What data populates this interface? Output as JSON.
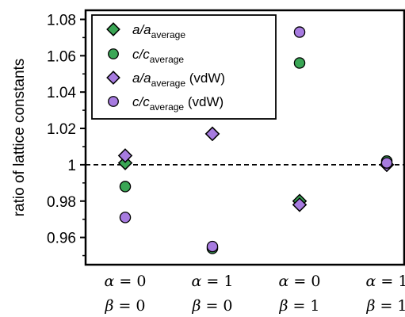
{
  "chart_data": {
    "type": "scatter",
    "xlabel": "",
    "ylabel": "ratio of lattice constants",
    "ylim": [
      0.945,
      1.085
    ],
    "yticks": [
      0.96,
      0.98,
      1,
      1.02,
      1.04,
      1.06,
      1.08
    ],
    "ytick_labels": [
      "0.96",
      "0.98",
      "1",
      "1.02",
      "1.04",
      "1.06",
      "1.08"
    ],
    "reference_line": {
      "y": 1,
      "style": "dashed"
    },
    "categories": [
      {
        "alpha": "α = 0",
        "beta": "β = 0"
      },
      {
        "alpha": "α = 1",
        "beta": "β = 0"
      },
      {
        "alpha": "α = 0",
        "beta": "β = 1"
      },
      {
        "alpha": "α = 1",
        "beta": "β = 1"
      }
    ],
    "legend_position": "top-left",
    "series": [
      {
        "name": "a/a_average",
        "label_main": "a/a",
        "label_sub": "average",
        "label_suffix": "",
        "marker": "diamond",
        "color": "#3aa655",
        "values": [
          1.001,
          1.017,
          0.98,
          1.0
        ]
      },
      {
        "name": "c/c_average",
        "label_main": "c/c",
        "label_sub": "average",
        "label_suffix": "",
        "marker": "circle",
        "color": "#3aa655",
        "values": [
          0.988,
          0.954,
          1.056,
          1.002
        ]
      },
      {
        "name": "a/a_average (vdW)",
        "label_main": "a/a",
        "label_sub": "average",
        "label_suffix": " (vdW)",
        "marker": "diamond",
        "color": "#a77be0",
        "values": [
          1.005,
          1.017,
          0.978,
          1.0
        ]
      },
      {
        "name": "c/c_average (vdW)",
        "label_main": "c/c",
        "label_sub": "average",
        "label_suffix": " (vdW)",
        "marker": "circle",
        "color": "#a77be0",
        "values": [
          0.971,
          0.955,
          1.073,
          1.001
        ]
      }
    ]
  }
}
